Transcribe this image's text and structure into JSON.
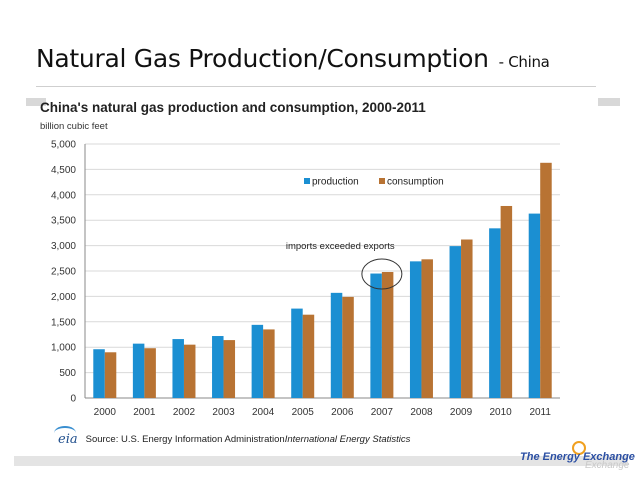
{
  "slide": {
    "title": "Natural Gas Production/Consumption",
    "subtitle": "- China"
  },
  "chart_data": {
    "type": "bar",
    "title": "China's natural gas production and consumption, 2000-2011",
    "ylabel": "billion cubic feet",
    "xlabel": "",
    "categories": [
      "2000",
      "2001",
      "2002",
      "2003",
      "2004",
      "2005",
      "2006",
      "2007",
      "2008",
      "2009",
      "2010",
      "2011"
    ],
    "series": [
      {
        "name": "production",
        "color": "#1b8fd2",
        "values": [
          960,
          1070,
          1160,
          1220,
          1440,
          1760,
          2070,
          2450,
          2690,
          2990,
          3340,
          3630
        ]
      },
      {
        "name": "consumption",
        "color": "#b87333",
        "values": [
          900,
          980,
          1050,
          1140,
          1350,
          1640,
          1990,
          2480,
          2730,
          3120,
          3780,
          4630
        ]
      }
    ],
    "ylim": [
      0,
      5000
    ],
    "yticks": [
      0,
      500,
      1000,
      1500,
      2000,
      2500,
      3000,
      3500,
      4000,
      4500,
      5000
    ],
    "ytick_labels": [
      "0",
      "500",
      "1,000",
      "1,500",
      "2,000",
      "2,500",
      "3,000",
      "3,500",
      "4,000",
      "4,500",
      "5,000"
    ],
    "grid": true,
    "legend_position": "top-center",
    "annotation": {
      "text": "imports exceeded exports",
      "category": "2007"
    }
  },
  "source": {
    "logo_text": "eia",
    "prefix": "Source: U.S. Energy Information Administration ",
    "publication": "International Energy Statistics"
  },
  "brand": {
    "text": "The Energy Exchange",
    "shadow_text": "Exchange"
  }
}
